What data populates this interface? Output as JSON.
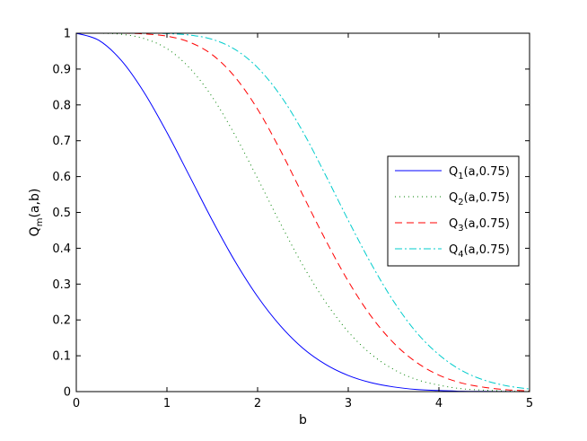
{
  "chart_data": {
    "type": "line",
    "xlabel": "b",
    "ylabel": {
      "base": "Q",
      "sub": "m",
      "rest": "(a,b)"
    },
    "xlim": [
      0,
      5
    ],
    "ylim": [
      0,
      1
    ],
    "xticks": [
      0,
      1,
      2,
      3,
      4,
      5
    ],
    "yticks": [
      0,
      0.1,
      0.2,
      0.3,
      0.4,
      0.5,
      0.6,
      0.7,
      0.8,
      0.9,
      1
    ],
    "grid": false,
    "legend_position": "right",
    "x": [
      0,
      0.25,
      0.5,
      0.75,
      1,
      1.25,
      1.5,
      1.75,
      2,
      2.25,
      2.5,
      2.75,
      3,
      3.25,
      3.5,
      3.75,
      4,
      4.25,
      4.5,
      4.75,
      5
    ],
    "series": [
      {
        "name": {
          "base": "Q",
          "sub": "1",
          "rest": "(a,0.75)"
        },
        "color": "#0000ff",
        "dash": "solid",
        "values": [
          1,
          0.98,
          0.923,
          0.834,
          0.723,
          0.601,
          0.478,
          0.364,
          0.265,
          0.184,
          0.121,
          0.076,
          0.045,
          0.025,
          0.013,
          0.006,
          0.003,
          0.001,
          0.0005,
          0.0002,
          0.0001
        ]
      },
      {
        "name": {
          "base": "Q",
          "sub": "2",
          "rest": "(a,0.75)"
        },
        "color": "#008000",
        "dash": "dotted",
        "values": [
          1,
          1,
          0.997,
          0.985,
          0.957,
          0.903,
          0.822,
          0.716,
          0.595,
          0.47,
          0.352,
          0.25,
          0.167,
          0.105,
          0.062,
          0.034,
          0.018,
          0.008,
          0.004,
          0.0015,
          0.0005
        ]
      },
      {
        "name": {
          "base": "Q",
          "sub": "3",
          "rest": "(a,0.75)"
        },
        "color": "#ff0000",
        "dash": "dashed",
        "values": [
          1,
          1,
          1,
          0.998,
          0.992,
          0.975,
          0.94,
          0.878,
          0.788,
          0.674,
          0.548,
          0.423,
          0.308,
          0.211,
          0.136,
          0.082,
          0.046,
          0.024,
          0.012,
          0.005,
          0.002
        ]
      },
      {
        "name": {
          "base": "Q",
          "sub": "4",
          "rest": "(a,0.75)"
        },
        "color": "#00cccc",
        "dash": "dashdot",
        "values": [
          1,
          1,
          1,
          1,
          0.999,
          0.995,
          0.983,
          0.955,
          0.904,
          0.827,
          0.725,
          0.604,
          0.478,
          0.358,
          0.252,
          0.166,
          0.103,
          0.059,
          0.032,
          0.016,
          0.007
        ]
      }
    ]
  }
}
